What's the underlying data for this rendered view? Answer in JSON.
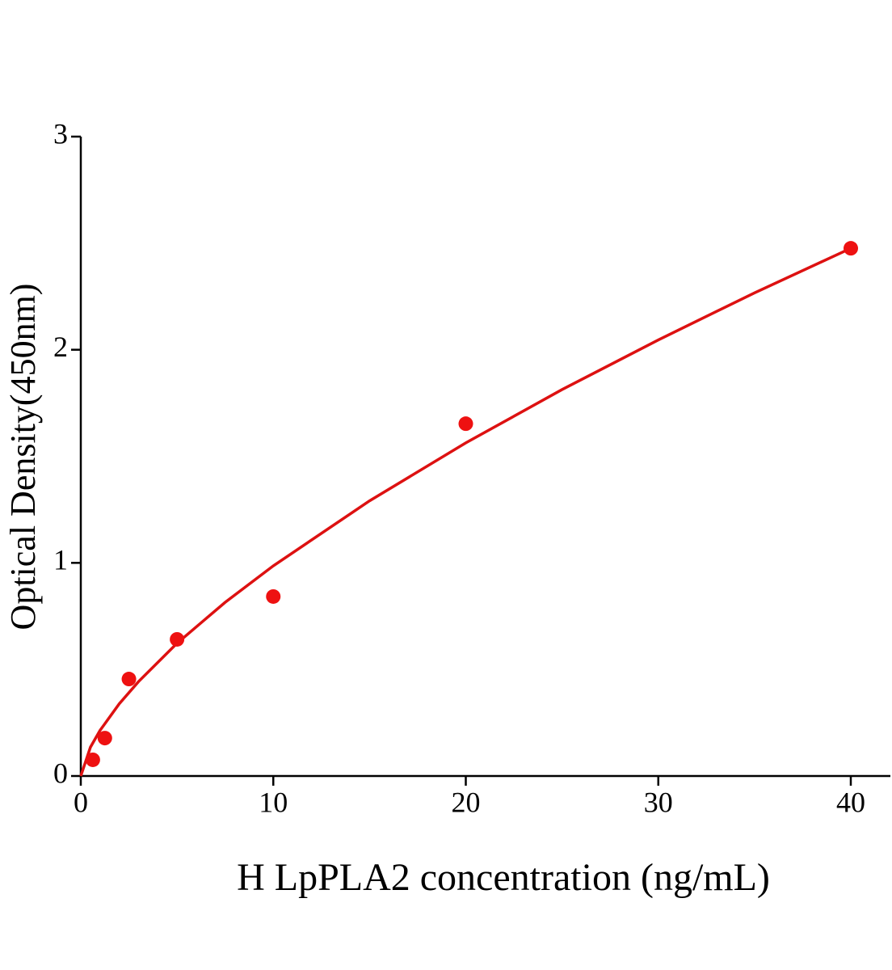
{
  "chart_data": {
    "type": "scatter",
    "x_label": "H LpPLA2 concentration (ng/mL)",
    "y_label": "Optical Density(450nm)",
    "series": [
      {
        "style": "markers",
        "color": "#ee1111",
        "x": [
          0.625,
          1.25,
          2.5,
          5,
          10,
          20,
          40
        ],
        "values": [
          0.076,
          0.178,
          0.455,
          0.641,
          0.842,
          1.653,
          2.476
        ]
      },
      {
        "style": "line",
        "color": "#dd1111",
        "x": [
          0,
          0.5,
          1,
          2,
          3,
          5,
          7.5,
          10,
          15,
          20,
          25,
          30,
          35,
          40
        ],
        "values": [
          0,
          0.135,
          0.214,
          0.339,
          0.443,
          0.623,
          0.815,
          0.986,
          1.291,
          1.563,
          1.813,
          2.046,
          2.267,
          2.476
        ]
      }
    ],
    "xlim": [
      0,
      42
    ],
    "ylim": [
      0,
      3
    ],
    "xticks": [
      0,
      10,
      20,
      30,
      40
    ],
    "yticks": [
      0,
      1,
      2,
      3
    ],
    "grid": false
  }
}
